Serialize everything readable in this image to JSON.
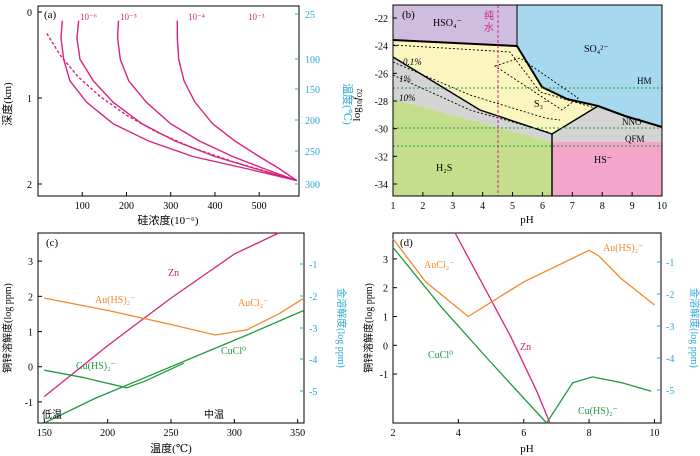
{
  "colors": {
    "magenta": "#d6237f",
    "orange": "#f08a2c",
    "green": "#1f9a3f",
    "cyan": "#2aa6d6",
    "purple_field": "#cfbde0",
    "blue_field": "#a6d8ee",
    "yellow_field": "#fbf5c0",
    "green_field": "#c5de8e",
    "pink_field": "#f3a6c9",
    "grey_field": "#d4d4d4"
  },
  "chart_data": [
    {
      "type": "line",
      "panel": "(a)",
      "xlabel": "硅浓度(10⁻⁶)",
      "xlim": [
        0,
        590
      ],
      "xticks": [
        "100",
        "200",
        "300",
        "400",
        "500"
      ],
      "ylabel_left": "深度(km)",
      "ylim_left": [
        0,
        2
      ],
      "yticks_left": [
        "0",
        "1",
        "2"
      ],
      "ylabel_right": "温度(℃)",
      "yticks_right": [
        "25",
        "100",
        "150",
        "200",
        "250",
        "300"
      ],
      "series": [
        {
          "name": "10⁻⁶",
          "style": "solid",
          "x": [
            55,
            52,
            58,
            72,
            110,
            170,
            250,
            350,
            470,
            585
          ],
          "y": [
            0.1,
            0.3,
            0.55,
            0.8,
            1.05,
            1.3,
            1.5,
            1.68,
            1.82,
            1.96
          ]
        },
        {
          "name": "10⁻⁵",
          "style": "solid",
          "x": [
            92,
            88,
            95,
            125,
            170,
            235,
            310,
            400,
            490,
            585
          ],
          "y": [
            0.1,
            0.3,
            0.55,
            0.8,
            1.05,
            1.3,
            1.5,
            1.68,
            1.82,
            1.96
          ]
        },
        {
          "name": "10⁻⁴",
          "style": "solid",
          "x": [
            182,
            180,
            186,
            205,
            245,
            300,
            365,
            440,
            510,
            585
          ],
          "y": [
            0.1,
            0.3,
            0.55,
            0.8,
            1.05,
            1.3,
            1.5,
            1.68,
            1.82,
            1.96
          ]
        },
        {
          "name": "10⁻³",
          "style": "solid",
          "x": [
            315,
            315,
            318,
            330,
            355,
            395,
            445,
            500,
            545,
            585
          ],
          "y": [
            0.1,
            0.3,
            0.55,
            0.8,
            1.05,
            1.3,
            1.5,
            1.68,
            1.82,
            1.96
          ]
        },
        {
          "name": "",
          "style": "dashed",
          "x": [
            20,
            50,
            90,
            140,
            200,
            270,
            350,
            440,
            520,
            585
          ],
          "y": [
            0.25,
            0.5,
            0.75,
            0.98,
            1.2,
            1.4,
            1.58,
            1.74,
            1.86,
            1.96
          ]
        }
      ],
      "labels": [
        "10⁻⁶",
        "10⁻⁵",
        "10⁻⁴",
        "10⁻³"
      ]
    },
    {
      "type": "area",
      "panel": "(b)",
      "xlabel": "pH",
      "xlim": [
        1,
        10
      ],
      "xticks": [
        "1",
        "2",
        "3",
        "4",
        "5",
        "6",
        "7",
        "8",
        "9",
        "10"
      ],
      "ylabel": "log₁₀fO₂",
      "ylim": [
        -35.5,
        -21
      ],
      "yticks": [
        "-22",
        "-24",
        "-26",
        "-28",
        "-30",
        "-32",
        "-34"
      ],
      "fields": [
        "HSO₄⁻",
        "SO₄²⁻",
        "S₃⁻",
        "H₂S",
        "HS⁻"
      ],
      "buffers": [
        "HM",
        "NNO",
        "QFM"
      ],
      "contours": [
        "0.1%",
        "1%",
        "10%"
      ],
      "annotation": "纯水",
      "pure_water_ph": 4.5
    },
    {
      "type": "line",
      "panel": "(c)",
      "xlabel": "温度(℃)",
      "xlim": [
        145,
        355
      ],
      "xticks": [
        "150",
        "200",
        "250",
        "300",
        "350"
      ],
      "ylabel_left": "铜锌溶解度(log ppm)",
      "ylim": [
        -1.6,
        3.8
      ],
      "yticks_left": [
        "-1",
        "0",
        "1",
        "2",
        "3"
      ],
      "ylabel_right": "金溶解度(log ppm)",
      "yticks_right": [
        "-1",
        "-2",
        "-3",
        "-4",
        "-5"
      ],
      "series": [
        {
          "name": "Zn",
          "x": [
            150,
            200,
            250,
            300,
            335
          ],
          "y": [
            -0.85,
            0.6,
            1.95,
            3.2,
            3.8
          ]
        },
        {
          "name": "Au(HS)₂⁻ / AuCl₂⁻",
          "x": [
            150,
            200,
            250,
            285,
            310,
            335,
            355
          ],
          "y": [
            1.95,
            1.6,
            1.2,
            0.9,
            1.05,
            1.5,
            1.95
          ]
        },
        {
          "name": "Cu(HS)₂⁻",
          "x": [
            150,
            180,
            215,
            230,
            260
          ],
          "y": [
            -0.1,
            -0.3,
            -0.6,
            -0.4,
            0.1
          ]
        },
        {
          "name": "CuCl⁰",
          "x": [
            150,
            190,
            230,
            270,
            310,
            355
          ],
          "y": [
            -1.6,
            -0.9,
            -0.3,
            0.3,
            0.9,
            1.6
          ]
        }
      ],
      "labels": [
        "Zn",
        "Au(HS)₂⁻",
        "AuCl₂⁻",
        "Cu(HS)₂⁻",
        "CuCl⁰",
        "低温",
        "中温"
      ]
    },
    {
      "type": "line",
      "panel": "(d)",
      "xlabel": "pH",
      "xlim": [
        2,
        10.2
      ],
      "xticks": [
        "2",
        "4",
        "6",
        "8",
        "10"
      ],
      "ylabel_left": "铜锌溶解度(log ppm)",
      "ylim": [
        -2.7,
        3.9
      ],
      "yticks_left": [
        "-1",
        "0",
        "1",
        "2",
        "3"
      ],
      "ylabel_right": "金溶解度(log ppm)",
      "yticks_right": [
        "-1",
        "-2",
        "-3",
        "-4",
        "-5"
      ],
      "series": [
        {
          "name": "Zn",
          "x": [
            3.9,
            4.8,
            5.6,
            6.4,
            6.8
          ],
          "y": [
            3.9,
            2.0,
            0.3,
            -1.6,
            -2.7
          ]
        },
        {
          "name": "AuCl₂⁻ / Au(HS)₂⁻",
          "x": [
            2.0,
            3.0,
            4.3,
            6.0,
            8.0,
            8.3,
            9.0,
            10.0
          ],
          "y": [
            3.7,
            2.2,
            1.0,
            2.2,
            3.3,
            3.1,
            2.3,
            1.4
          ]
        },
        {
          "name": "CuCl⁰",
          "x": [
            2.0,
            3.5,
            5.0,
            6.7
          ],
          "y": [
            3.4,
            1.3,
            -0.6,
            -2.7
          ]
        },
        {
          "name": "Cu(HS)₂⁻",
          "x": [
            6.7,
            7.5,
            8.1,
            9.0,
            9.9
          ],
          "y": [
            -2.7,
            -1.3,
            -1.1,
            -1.3,
            -1.6
          ]
        }
      ],
      "labels": [
        "AuCl₂⁻",
        "Au(HS)₂⁻",
        "Zn",
        "CuCl⁰",
        "Cu(HS)₂⁻"
      ]
    }
  ],
  "panels": {
    "a": {
      "tag": "(a)",
      "xlabel": "硅浓度(10⁻⁶)",
      "ylabel_left": "深度(km)",
      "ylabel_right": "温度(℃)",
      "xtick_labels": [
        "100",
        "200",
        "300",
        "400",
        "500"
      ],
      "ytick_left_labels": [
        "0",
        "1",
        "2"
      ],
      "ytick_right_labels": [
        "25",
        "100",
        "150",
        "200",
        "250",
        "300"
      ],
      "curve_labels": [
        "10⁻⁶",
        "10⁻⁵",
        "10⁻⁴",
        "10⁻³"
      ]
    },
    "b": {
      "tag": "(b)",
      "xlabel": "pH",
      "ylabel_main": "log",
      "ylabel_sub1": "10",
      "ylabel_f": "f",
      "ylabel_sub2": "O2",
      "xtick_labels": [
        "1",
        "2",
        "3",
        "4",
        "5",
        "6",
        "7",
        "8",
        "9",
        "10"
      ],
      "ytick_labels": [
        "-22",
        "-24",
        "-26",
        "-28",
        "-30",
        "-32",
        "-34"
      ],
      "field_hso4": "HSO₄⁻",
      "field_so4": "SO₄²⁻",
      "field_s3": "S₃⁻",
      "field_h2s": "H₂S",
      "field_hs": "HS⁻",
      "buffer_hm": "HM",
      "buffer_nno": "NNO",
      "buffer_qfm": "QFM",
      "contour_01": "0.1%",
      "contour_1": "1%",
      "contour_10": "10%",
      "pure_water_1": "纯",
      "pure_water_2": "水"
    },
    "c": {
      "tag": "(c)",
      "xlabel": "温度(℃)",
      "ylabel_left": "铜锌溶解度(log ppm)",
      "ylabel_right": "金溶解度(log ppm)",
      "xtick_labels": [
        "150",
        "200",
        "250",
        "300",
        "350"
      ],
      "ytick_left_labels": [
        "-1",
        "0",
        "1",
        "2",
        "3"
      ],
      "ytick_right_labels": [
        "-1",
        "-2",
        "-3",
        "-4",
        "-5"
      ],
      "label_zn": "Zn",
      "label_auhs": "Au(HS)₂⁻",
      "label_aucl": "AuCl₂⁻",
      "label_cuhs": "Cu(HS)₂⁻",
      "label_cucl": "CuCl⁰",
      "label_low": "低温",
      "label_mid": "中温"
    },
    "d": {
      "tag": "(d)",
      "xlabel": "pH",
      "ylabel_left": "铜锌溶解度(log ppm)",
      "ylabel_right": "金溶解度(log ppm)",
      "xtick_labels": [
        "2",
        "4",
        "6",
        "8",
        "10"
      ],
      "ytick_left_labels": [
        "-1",
        "0",
        "1",
        "2",
        "3"
      ],
      "ytick_right_labels": [
        "-1",
        "-2",
        "-3",
        "-4",
        "-5"
      ],
      "label_aucl": "AuCl₂⁻",
      "label_auhs": "Au(HS)₂⁻",
      "label_zn": "Zn",
      "label_cucl": "CuCl⁰",
      "label_cuhs": "Cu(HS)₂⁻"
    }
  }
}
